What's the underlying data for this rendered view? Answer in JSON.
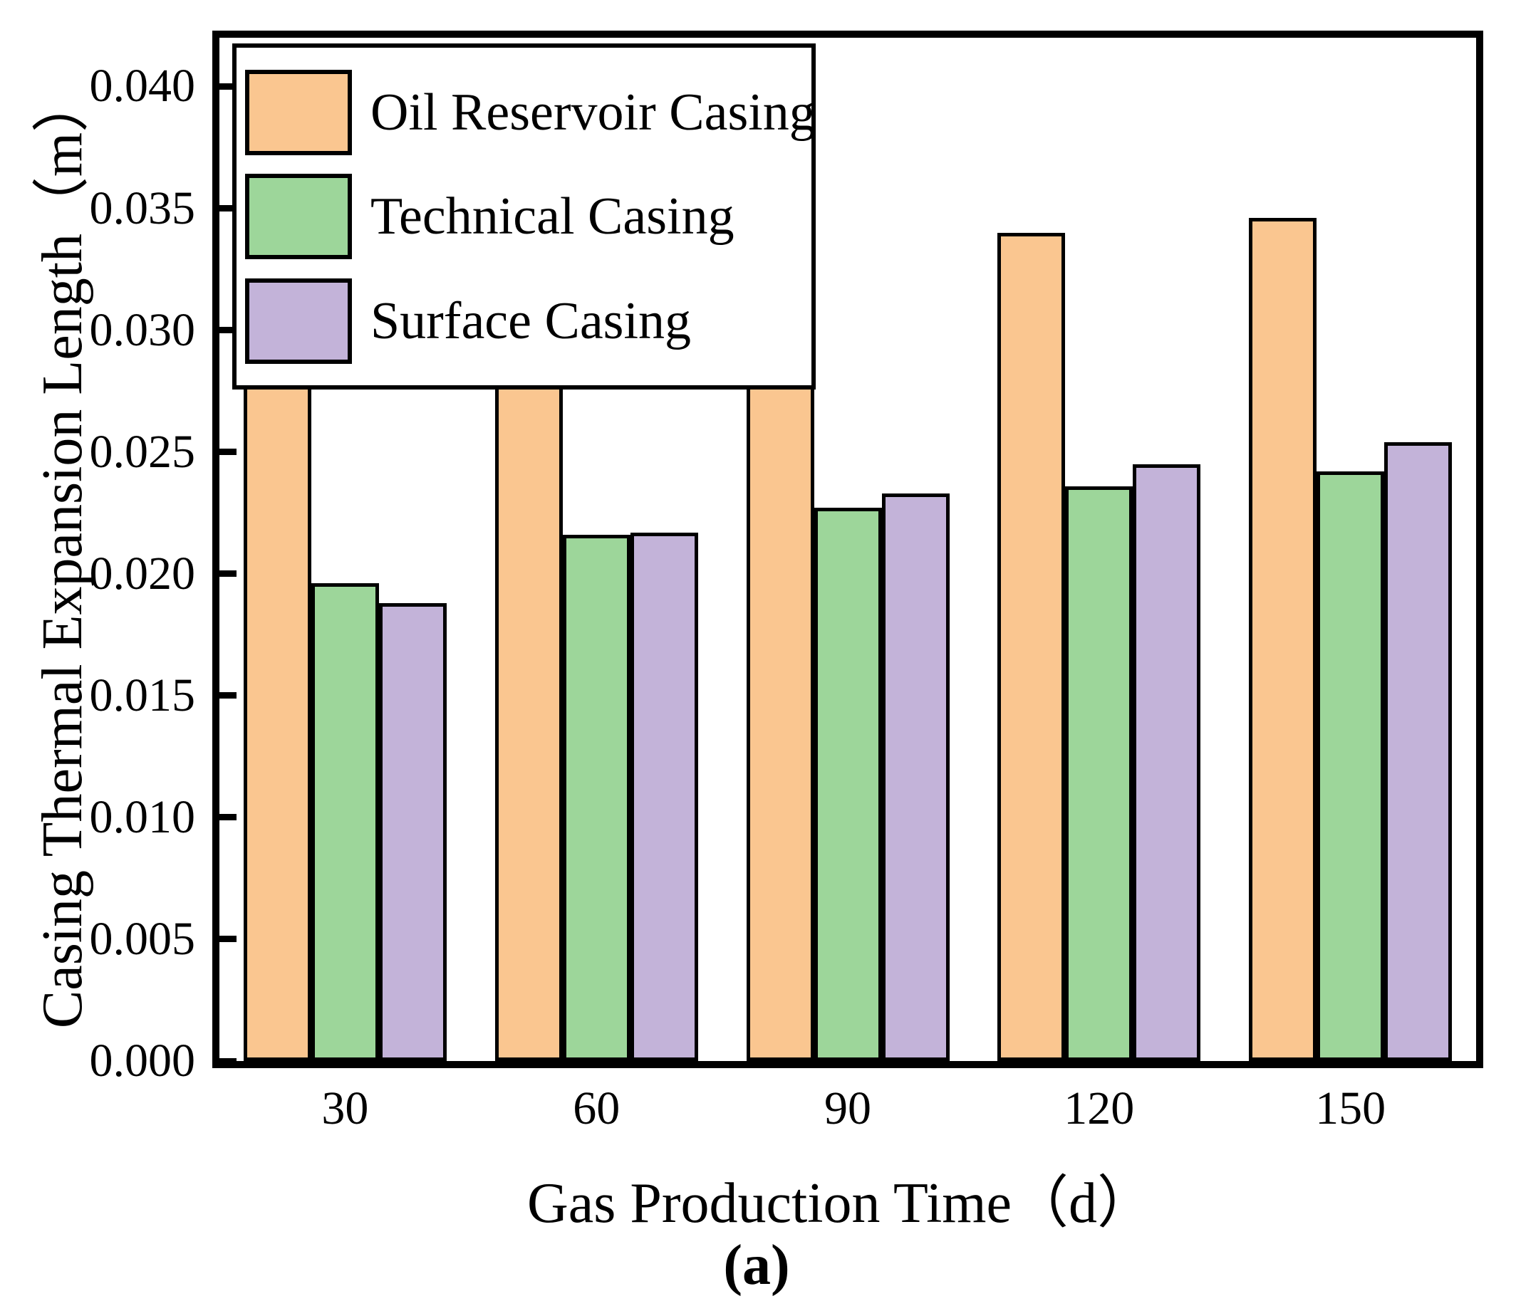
{
  "figure": {
    "caption": "(a)"
  },
  "chart_data": {
    "type": "bar",
    "title": "",
    "xlabel": "Gas Production Time（d）",
    "ylabel": "Casing Thermal Expansion Length（m）",
    "categories": [
      "30",
      "60",
      "90",
      "120",
      "150"
    ],
    "series": [
      {
        "name": "Oil Reservoir Casing",
        "color": "#FAC690",
        "values": [
          0.0298,
          0.0319,
          0.0331,
          0.034,
          0.0346
        ]
      },
      {
        "name": "Technical Casing",
        "color": "#9DD69A",
        "values": [
          0.0196,
          0.0216,
          0.0227,
          0.0236,
          0.0242
        ]
      },
      {
        "name": "Surface Casing",
        "color": "#C3B3D9",
        "values": [
          0.0188,
          0.0217,
          0.0233,
          0.0245,
          0.0254
        ]
      }
    ],
    "ylim": [
      0,
      0.042
    ],
    "yticks": {
      "values": [
        0.0,
        0.005,
        0.01,
        0.015,
        0.02,
        0.025,
        0.03,
        0.035,
        0.04
      ],
      "labels": [
        "0.000",
        "0.005",
        "0.010",
        "0.015",
        "0.020",
        "0.025",
        "0.030",
        "0.035",
        "0.040"
      ]
    },
    "bar_border_color": "#000000",
    "legend_position": "top-left",
    "grid": false
  }
}
